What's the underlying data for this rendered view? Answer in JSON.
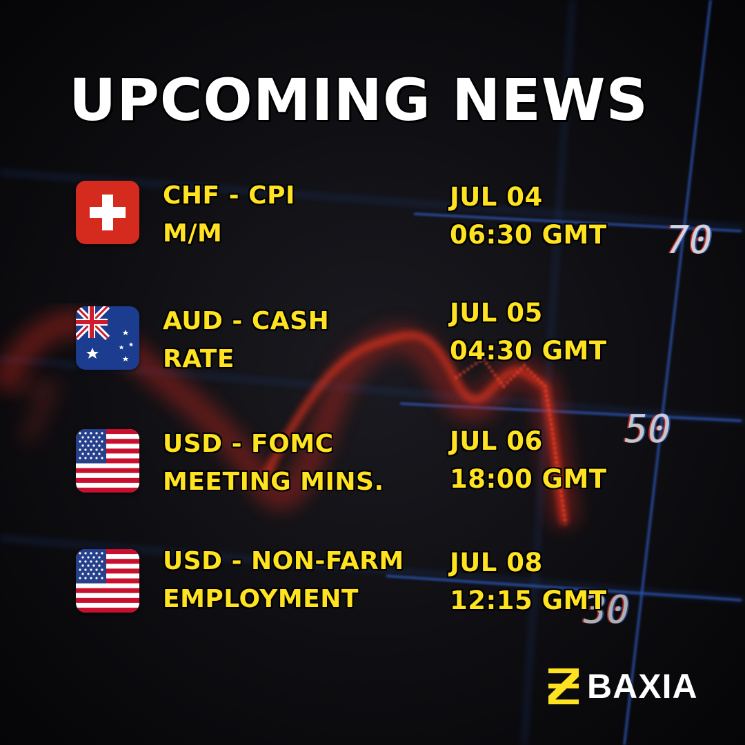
{
  "title": "UPCOMING NEWS",
  "colors": {
    "accent": "#ffe320",
    "title": "#ffffff",
    "background": "#0b0b0d",
    "chart_red": "#e0301e",
    "grid_blue": "#2c5cc8"
  },
  "background_labels": [
    "70",
    "50",
    "30"
  ],
  "events": [
    {
      "flag": "switzerland-flag-icon",
      "line1": "CHF - CPI",
      "line2": "M/M",
      "date": "JUL 04",
      "time": "06:30 GMT"
    },
    {
      "flag": "australia-flag-icon",
      "line1": "AUD - CASH",
      "line2": "RATE",
      "date": "JUL 05",
      "time": "04:30 GMT"
    },
    {
      "flag": "usa-flag-icon",
      "line1": "USD - FOMC",
      "line2": "MEETING MINS.",
      "date": "JUL 06",
      "time": "18:00 GMT"
    },
    {
      "flag": "usa-flag-icon",
      "line1": "USD - NON-FARM",
      "line2": "EMPLOYMENT",
      "date": "JUL 08",
      "time": "12:15 GMT"
    }
  ],
  "brand": {
    "name": "BAXIA",
    "mark_icon": "baxia-logo-icon"
  }
}
